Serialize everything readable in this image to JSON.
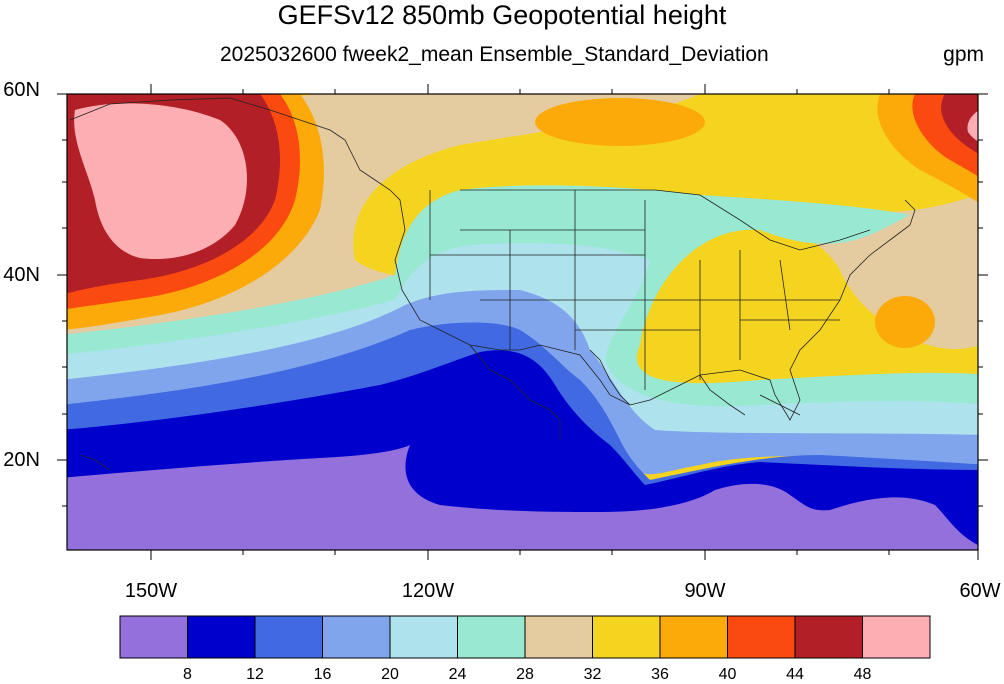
{
  "title": "GEFSv12 850mb Geopotential height",
  "subtitle": "2025032600 fweek2_mean Ensemble_Standard_Deviation",
  "units": "gpm",
  "lat_ticks": [
    "60N",
    "40N",
    "20N"
  ],
  "lon_ticks": [
    "150W",
    "120W",
    "90W",
    "60W"
  ],
  "extent": {
    "lon": [
      -159,
      -60
    ],
    "lat": [
      10,
      60
    ]
  },
  "colorbar": {
    "labels": [
      "8",
      "12",
      "16",
      "20",
      "24",
      "28",
      "32",
      "36",
      "40",
      "44",
      "48"
    ],
    "colors": [
      "#9370db",
      "#0000cd",
      "#4169e1",
      "#80a5ec",
      "#aee2ec",
      "#98e8d2",
      "#e5cba0",
      "#f5d420",
      "#fbaa0a",
      "#fb4a10",
      "#b21f26",
      "#fdaeb3"
    ]
  }
}
